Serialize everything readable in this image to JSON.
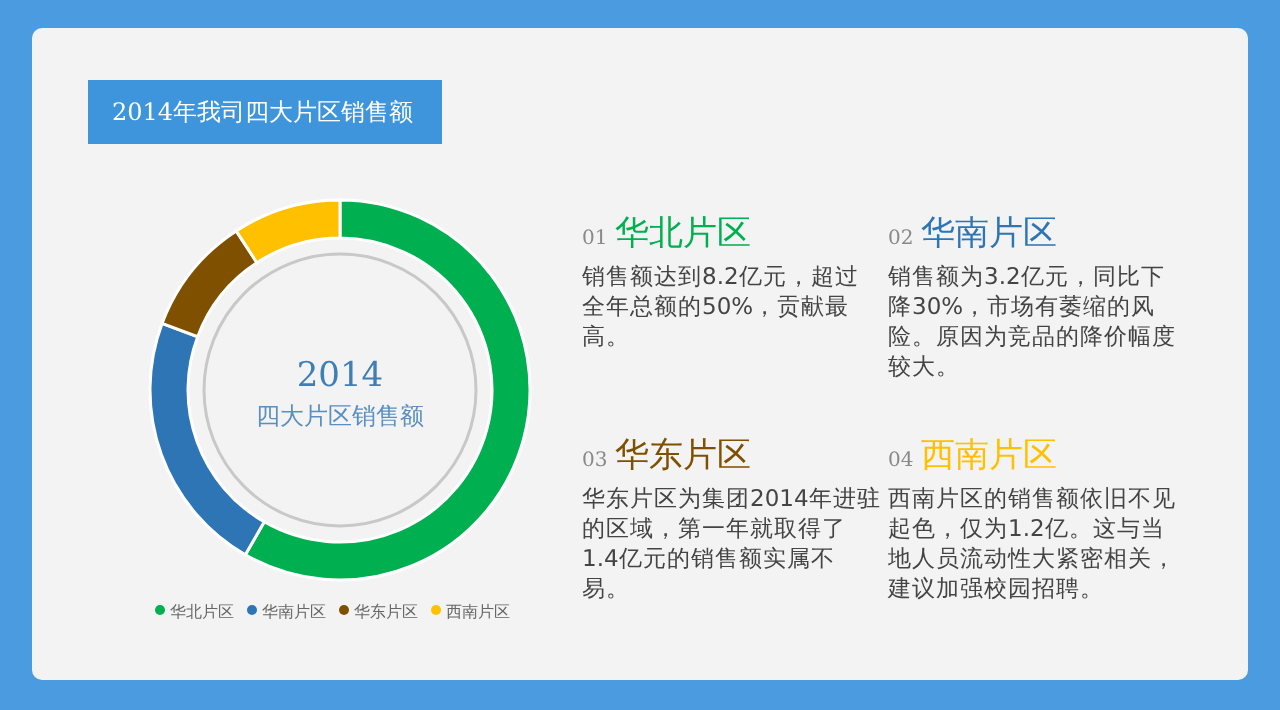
{
  "chart_data": {
    "type": "donut",
    "title": "2014年我司四大片区销售额",
    "categories": [
      "华北片区",
      "华南片区",
      "华东片区",
      "西南片区"
    ],
    "values": [
      58.3,
      22.4,
      10.1,
      9.2
    ],
    "colors": [
      "#00b050",
      "#2e75b6",
      "#7f5000",
      "#ffc000"
    ],
    "legend": "bottom",
    "annotations": [
      "2014",
      "四大片区销售额",
      "01",
      "华北片区",
      "销售额达到8.2亿元，超过全年总额的50%，贡献最高。",
      "02",
      "华南片区",
      "销售额为3.2亿元，同比下降30%，市场有萎缩的风险。原因为竞品的降价幅度较大。",
      "03",
      "华东片区",
      "华东片区为集团2014年进驻的区域，第一年就取得了1.4亿元的销售额实属不易。",
      "04",
      "西南片区",
      "西南片区的销售额依旧不见起色，仅为1.2亿。这与当地人员流动性大紧密相关，建议加强校园招聘。"
    ]
  }
}
